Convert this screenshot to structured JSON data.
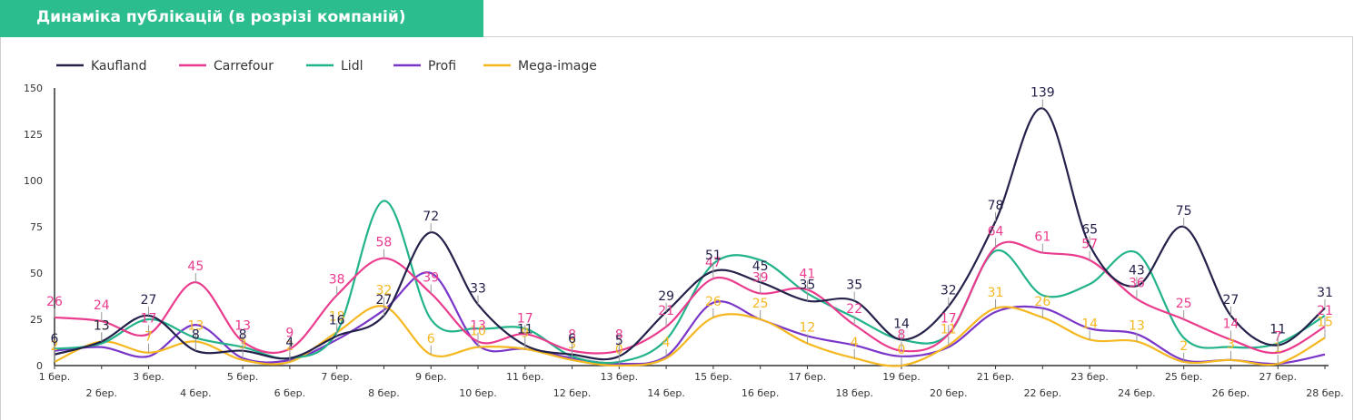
{
  "header": {
    "title": "Динаміка публікацій (в розрізі компаній)"
  },
  "chart_data": {
    "type": "line",
    "title": "Динаміка публікацій (в розрізі компаній)",
    "categories": [
      "1 бер.",
      "2 бер.",
      "3 бер.",
      "4 бер.",
      "5 бер.",
      "6 бер.",
      "7 бер.",
      "8 бер.",
      "9 бер.",
      "10 бер.",
      "11 бер.",
      "12 бер.",
      "13 бер.",
      "14 бер.",
      "15 бер.",
      "16 бер.",
      "17 бер.",
      "18 бер.",
      "19 бер.",
      "20 бер.",
      "21 бер.",
      "22 бер.",
      "23 бер.",
      "24 бер.",
      "25 бер.",
      "26 бер.",
      "27 бер.",
      "28 бер."
    ],
    "ylim": [
      0,
      150
    ],
    "yticks": [
      0,
      25,
      50,
      75,
      100,
      125,
      150
    ],
    "legend_position": "top-left",
    "grid": false,
    "series": [
      {
        "name": "Kaufland",
        "color": "#24214a",
        "values": [
          6,
          13,
          27,
          8,
          8,
          4,
          16,
          27,
          72,
          33,
          11,
          6,
          5,
          29,
          51,
          45,
          35,
          35,
          14,
          32,
          78,
          139,
          65,
          43,
          75,
          27,
          11,
          31
        ],
        "labels": [
          6,
          13,
          27,
          8,
          8,
          4,
          16,
          27,
          72,
          33,
          11,
          6,
          5,
          29,
          51,
          45,
          35,
          35,
          14,
          32,
          78,
          139,
          65,
          43,
          75,
          27,
          11,
          31
        ]
      },
      {
        "name": "Carrefour",
        "color": "#ea3b8e",
        "values": [
          26,
          24,
          17,
          45,
          13,
          9,
          38,
          58,
          39,
          13,
          17,
          8,
          8,
          21,
          47,
          39,
          41,
          22,
          8,
          17,
          64,
          61,
          57,
          36,
          25,
          14,
          7,
          21
        ],
        "labels": [
          26,
          24,
          17,
          45,
          13,
          9,
          38,
          58,
          39,
          13,
          17,
          8,
          8,
          21,
          47,
          39,
          41,
          22,
          8,
          17,
          64,
          61,
          57,
          36,
          25,
          14,
          7,
          21
        ]
      },
      {
        "name": "Lidl",
        "color": "#22b38a",
        "values": [
          9,
          12,
          25,
          15,
          10,
          4,
          18,
          89,
          25,
          20,
          20,
          5,
          2,
          14,
          55,
          57,
          39,
          26,
          14,
          17,
          62,
          38,
          44,
          61,
          15,
          10,
          12,
          27
        ],
        "labels": []
      },
      {
        "name": "Profi",
        "color": "#7a36c9",
        "values": [
          8,
          10,
          5,
          22,
          4,
          3,
          14,
          30,
          50,
          11,
          9,
          4,
          1,
          5,
          34,
          25,
          16,
          11,
          5,
          10,
          29,
          31,
          20,
          17,
          3,
          3,
          1,
          6
        ],
        "labels": []
      },
      {
        "name": "Mega-image",
        "color": "#f5b820",
        "values": [
          2,
          13,
          7,
          13,
          3,
          2,
          18,
          32,
          6,
          10,
          9,
          3,
          0,
          4,
          26,
          25,
          12,
          4,
          0,
          11,
          31,
          26,
          14,
          13,
          2,
          3,
          1,
          15
        ],
        "labels": [
          2,
          13,
          7,
          13,
          3,
          2,
          18,
          32,
          6,
          10,
          9,
          3,
          0,
          4,
          26,
          25,
          12,
          4,
          0,
          11,
          31,
          26,
          14,
          13,
          2,
          3,
          1,
          15
        ]
      }
    ]
  }
}
